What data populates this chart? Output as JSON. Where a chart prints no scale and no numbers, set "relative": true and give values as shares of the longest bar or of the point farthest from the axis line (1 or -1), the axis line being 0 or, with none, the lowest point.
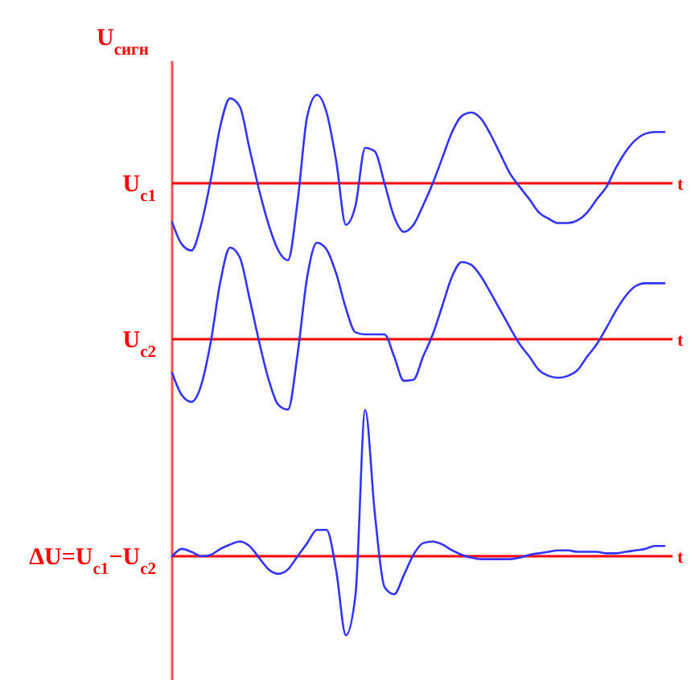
{
  "chart_data": [
    {
      "type": "line",
      "relative": true,
      "ylabel": "U$_{сигн}$",
      "xlabel": "t",
      "ref_lines": [
        {
          "axis": "y",
          "value": 0,
          "color": "#ff0000"
        }
      ],
      "categories": [
        null,
        null,
        null,
        null,
        null,
        null,
        null,
        null,
        null,
        null,
        null,
        null,
        null,
        null,
        null,
        null,
        null,
        null,
        null,
        null,
        null,
        null,
        null,
        null,
        null,
        null,
        null,
        null,
        null,
        null,
        null,
        null,
        null,
        null,
        null,
        null,
        null,
        null,
        null,
        null,
        null,
        null,
        null,
        null,
        null,
        null,
        null,
        null,
        null,
        null,
        null,
        null
      ],
      "series": [
        {
          "name": "U$_{c1}$",
          "color": "#3333ff",
          "values": [
            -0.44,
            -0.69,
            -0.76,
            -0.47,
            0.04,
            0.65,
            0.96,
            0.87,
            0.4,
            -0.07,
            -0.47,
            -0.76,
            -0.87,
            -0.2,
            0.76,
            1,
            0.8,
            0.25,
            -0.47,
            -0.25,
            0.4,
            0.36,
            0,
            -0.38,
            -0.55,
            -0.47,
            -0.25,
            0,
            0.29,
            0.58,
            0.76,
            0.8,
            0.73,
            0.55,
            0.33,
            0.11,
            -0.04,
            -0.18,
            -0.33,
            -0.4,
            -0.45,
            -0.45,
            -0.42,
            -0.33,
            -0.18,
            -0.04,
            0.18,
            0.36,
            0.49,
            0.56,
            0.58,
            0.58
          ]
        }
      ]
    },
    {
      "type": "line",
      "relative": true,
      "xlabel": "t",
      "ref_lines": [
        {
          "axis": "y",
          "value": 0,
          "color": "#ff0000"
        }
      ],
      "categories": [
        null,
        null,
        null,
        null,
        null,
        null,
        null,
        null,
        null,
        null,
        null,
        null,
        null,
        null,
        null,
        null,
        null,
        null,
        null,
        null,
        null,
        null,
        null,
        null,
        null,
        null,
        null,
        null,
        null,
        null,
        null,
        null,
        null,
        null,
        null,
        null,
        null,
        null,
        null,
        null,
        null,
        null,
        null,
        null,
        null,
        null,
        null,
        null,
        null,
        null,
        null,
        null
      ],
      "series": [
        {
          "name": "U$_{c2}$",
          "color": "#3333ff",
          "values": [
            -0.35,
            -0.58,
            -0.65,
            -0.48,
            -0.03,
            0.6,
            0.95,
            0.85,
            0.43,
            -0.02,
            -0.42,
            -0.68,
            -0.73,
            -0.15,
            0.65,
            1,
            0.93,
            0.68,
            0.32,
            0.07,
            0.05,
            0.05,
            0.05,
            -0.18,
            -0.43,
            -0.42,
            -0.18,
            0.05,
            0.35,
            0.65,
            0.8,
            0.77,
            0.65,
            0.48,
            0.3,
            0.12,
            -0.05,
            -0.18,
            -0.32,
            -0.38,
            -0.4,
            -0.38,
            -0.32,
            -0.18,
            -0.05,
            0.12,
            0.3,
            0.45,
            0.55,
            0.58,
            0.58,
            0.58
          ]
        }
      ]
    },
    {
      "type": "line",
      "relative": true,
      "xlabel": "t",
      "ref_lines": [
        {
          "axis": "y",
          "value": 0,
          "color": "#ff0000"
        }
      ],
      "categories": [
        null,
        null,
        null,
        null,
        null,
        null,
        null,
        null,
        null,
        null,
        null,
        null,
        null,
        null,
        null,
        null,
        null,
        null,
        null,
        null,
        null,
        null,
        null,
        null,
        null,
        null,
        null,
        null,
        null,
        null,
        null,
        null,
        null,
        null,
        null,
        null,
        null,
        null,
        null,
        null,
        null,
        null,
        null,
        null,
        null,
        null,
        null,
        null,
        null,
        null,
        null,
        null
      ],
      "series": [
        {
          "name": "ΔU=U$_{c1}$−U$_{c2}$",
          "color": "#3333ff",
          "values": [
            0,
            0.05,
            0.03,
            0,
            0.01,
            0.05,
            0.08,
            0.1,
            0.07,
            -0.01,
            -0.09,
            -0.12,
            -0.09,
            0,
            0.09,
            0.18,
            0.18,
            -0.1,
            -0.54,
            -0.26,
            1,
            0.29,
            -0.21,
            -0.26,
            -0.13,
            0.01,
            0.09,
            0.1,
            0.08,
            0.04,
            0.01,
            -0.01,
            -0.02,
            -0.02,
            -0.02,
            -0.02,
            -0.01,
            0.01,
            0.02,
            0.03,
            0.04,
            0.04,
            0.03,
            0.03,
            0.03,
            0.02,
            0.02,
            0.03,
            0.04,
            0.05,
            0.07,
            0.07
          ]
        }
      ]
    }
  ]
}
